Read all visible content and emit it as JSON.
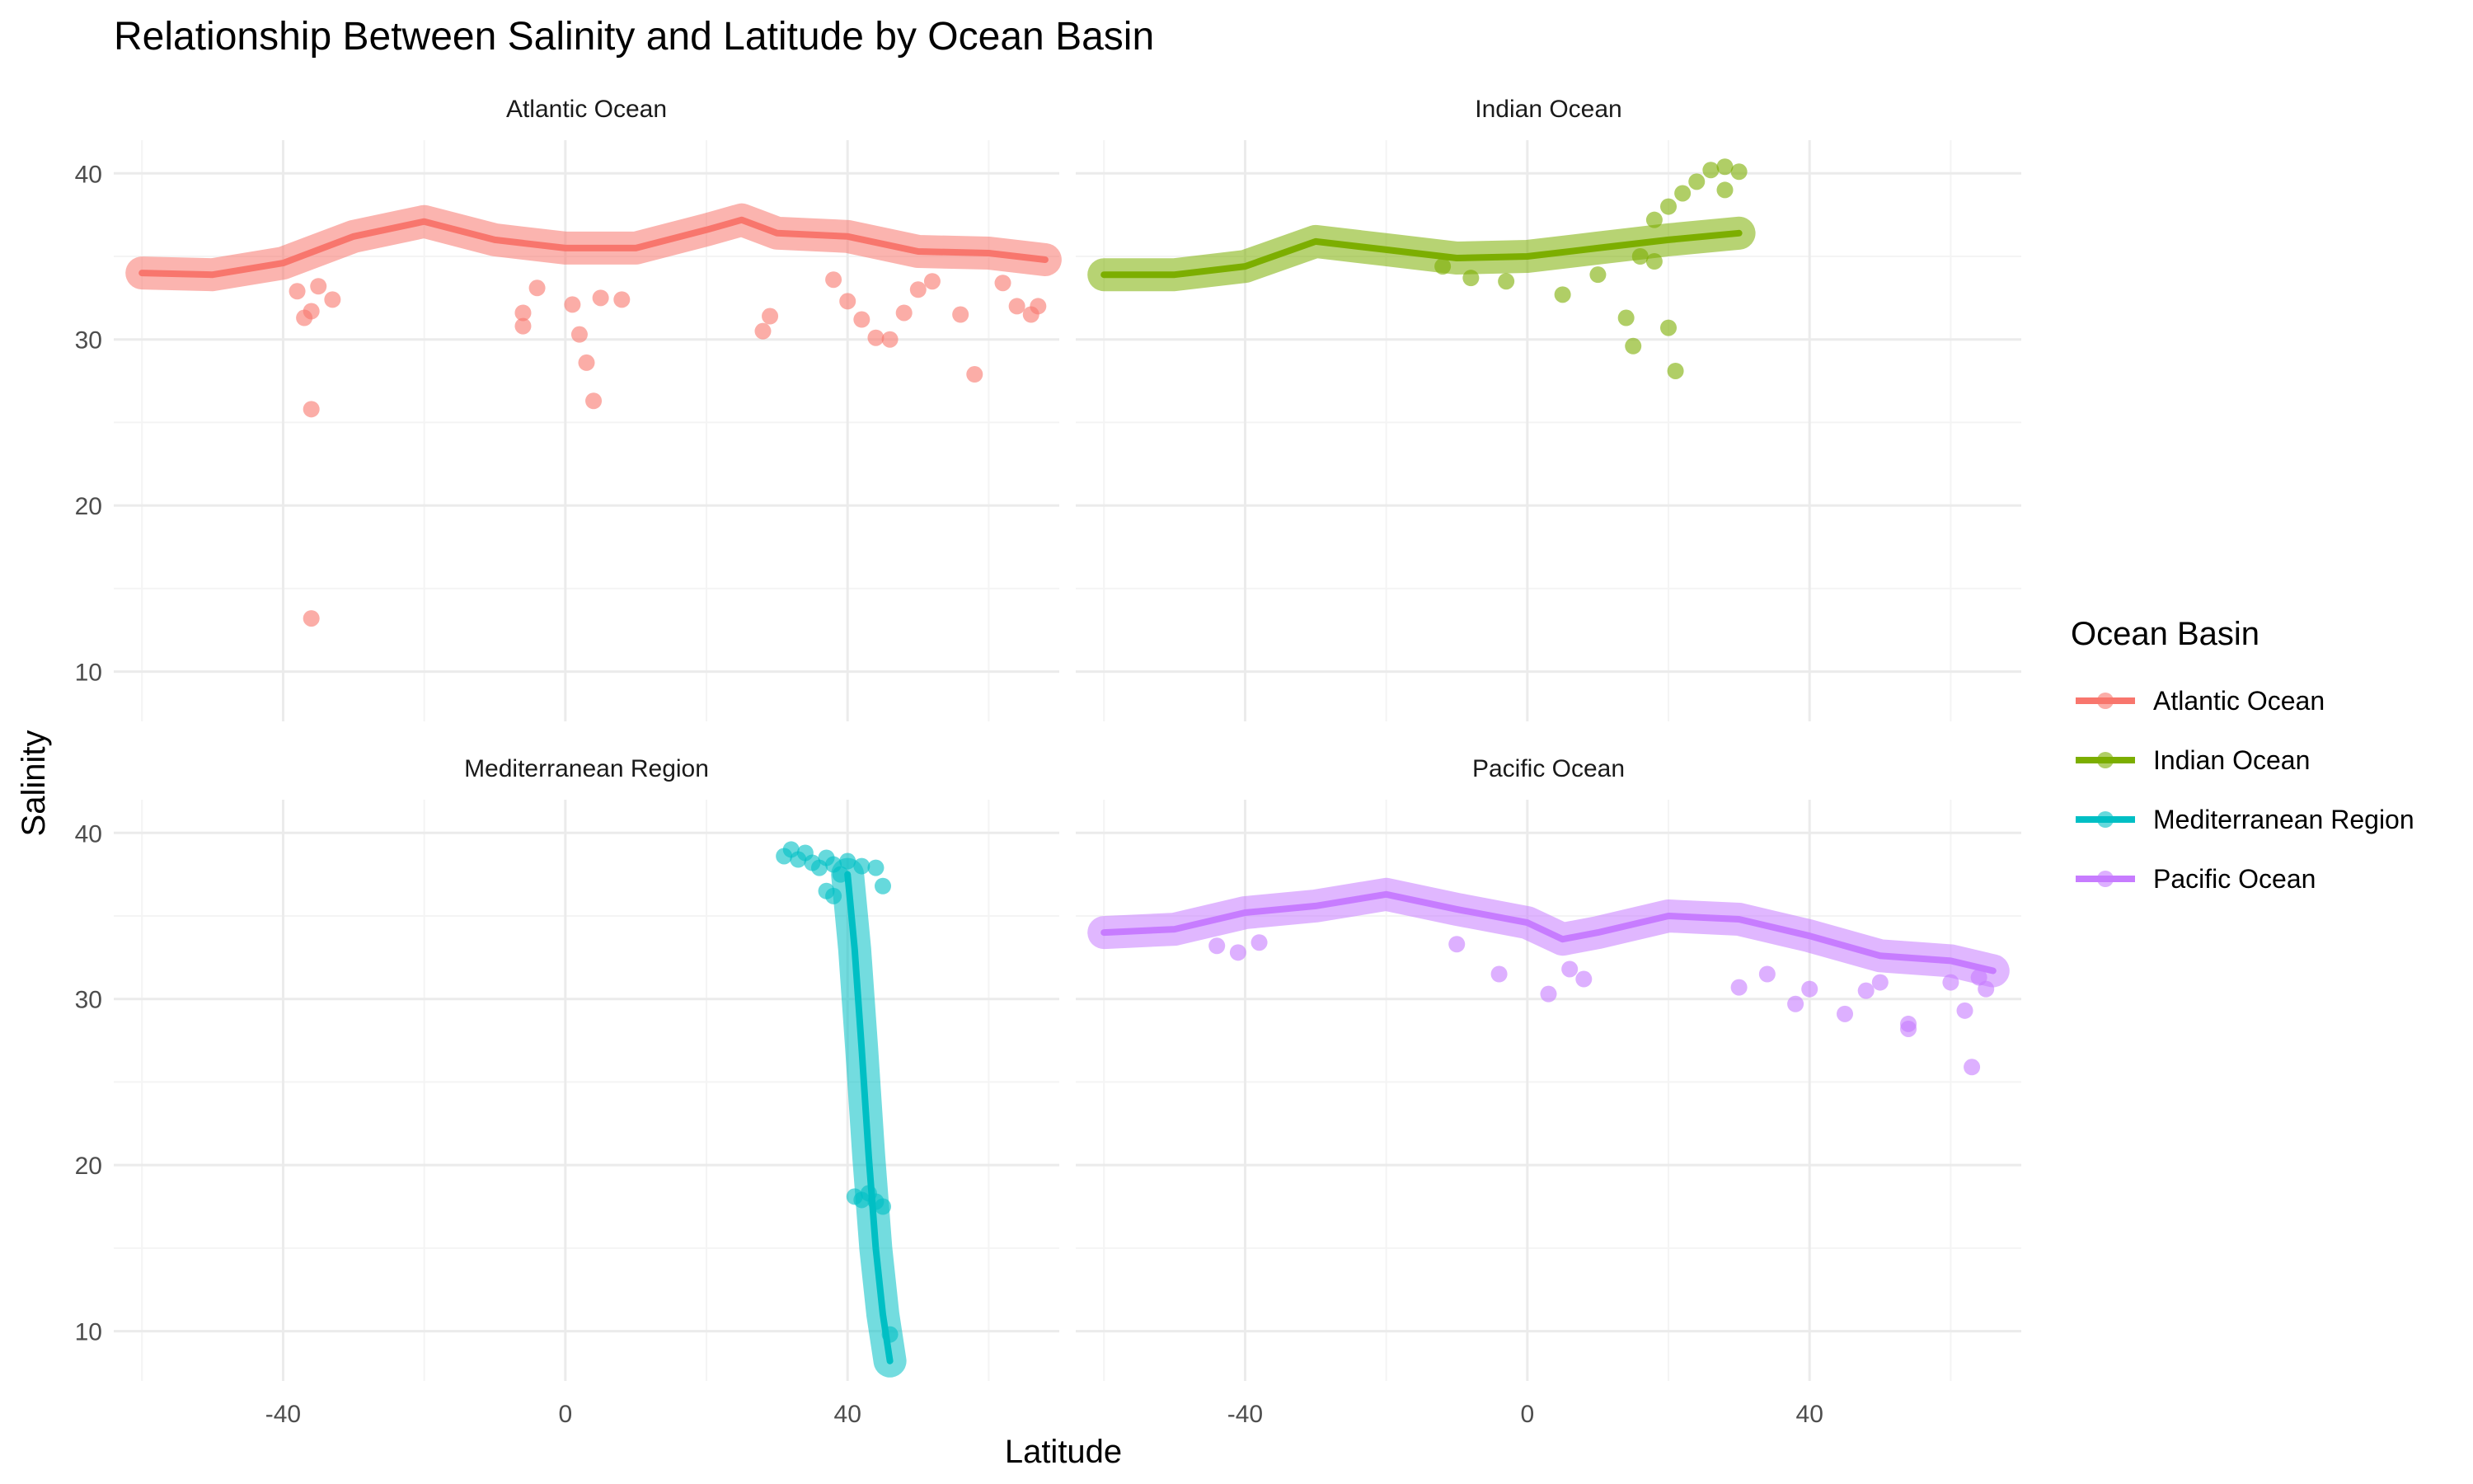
{
  "chart_data": {
    "type": "scatter",
    "title": "Relationship Between Salinity and Latitude by Ocean Basin",
    "xlabel": "Latitude",
    "ylabel": "Salinity",
    "xlim": [
      -64,
      70
    ],
    "ylim": [
      7,
      42
    ],
    "x_ticks": [
      -40,
      0,
      40
    ],
    "y_ticks": [
      10,
      20,
      30,
      40
    ],
    "grid": true,
    "legend": {
      "title": "Ocean Basin",
      "position": "right",
      "entries": [
        "Atlantic Ocean",
        "Indian Ocean",
        "Mediterranean Region",
        "Pacific Ocean"
      ]
    },
    "facets": [
      {
        "name": "Atlantic Ocean",
        "color": "#F8766D",
        "trend": [
          [
            -60,
            34.0
          ],
          [
            -50,
            33.9
          ],
          [
            -40,
            34.6
          ],
          [
            -30,
            36.2
          ],
          [
            -20,
            37.1
          ],
          [
            -10,
            36.0
          ],
          [
            0,
            35.5
          ],
          [
            10,
            35.5
          ],
          [
            20,
            36.6
          ],
          [
            25,
            37.2
          ],
          [
            30,
            36.4
          ],
          [
            40,
            36.2
          ],
          [
            50,
            35.3
          ],
          [
            60,
            35.2
          ],
          [
            68,
            34.8
          ]
        ],
        "points": [
          [
            -36,
            25.8
          ],
          [
            -36,
            13.2
          ],
          [
            -37,
            31.3
          ],
          [
            -36,
            31.7
          ],
          [
            -38,
            32.9
          ],
          [
            -35,
            33.2
          ],
          [
            -33,
            32.4
          ],
          [
            -6,
            30.8
          ],
          [
            -6,
            31.6
          ],
          [
            -4,
            33.1
          ],
          [
            1,
            32.1
          ],
          [
            2,
            30.3
          ],
          [
            3,
            28.6
          ],
          [
            4,
            26.3
          ],
          [
            5,
            32.5
          ],
          [
            8,
            32.4
          ],
          [
            28,
            30.5
          ],
          [
            29,
            31.4
          ],
          [
            38,
            33.6
          ],
          [
            40,
            32.3
          ],
          [
            42,
            31.2
          ],
          [
            44,
            30.1
          ],
          [
            46,
            30.0
          ],
          [
            48,
            31.6
          ],
          [
            50,
            33.0
          ],
          [
            52,
            33.5
          ],
          [
            56,
            31.5
          ],
          [
            58,
            27.9
          ],
          [
            62,
            33.4
          ],
          [
            64,
            32.0
          ],
          [
            66,
            31.5
          ],
          [
            67,
            32.0
          ]
        ]
      },
      {
        "name": "Indian Ocean",
        "color": "#7CAE00",
        "trend": [
          [
            -60,
            33.9
          ],
          [
            -50,
            33.9
          ],
          [
            -40,
            34.4
          ],
          [
            -30,
            35.9
          ],
          [
            -20,
            35.4
          ],
          [
            -10,
            34.9
          ],
          [
            0,
            35.0
          ],
          [
            10,
            35.5
          ],
          [
            20,
            36.0
          ],
          [
            30,
            36.4
          ]
        ],
        "points": [
          [
            5,
            32.7
          ],
          [
            10,
            33.9
          ],
          [
            14,
            31.3
          ],
          [
            15,
            29.6
          ],
          [
            18,
            34.7
          ],
          [
            20,
            30.7
          ],
          [
            21,
            28.1
          ],
          [
            16,
            35.0
          ],
          [
            18,
            37.2
          ],
          [
            20,
            38.0
          ],
          [
            22,
            38.8
          ],
          [
            24,
            39.5
          ],
          [
            26,
            40.2
          ],
          [
            28,
            40.4
          ],
          [
            30,
            40.1
          ],
          [
            28,
            39.0
          ],
          [
            -3,
            33.5
          ],
          [
            -8,
            33.7
          ],
          [
            -12,
            34.4
          ]
        ]
      },
      {
        "name": "Mediterranean Region",
        "color": "#00BFC4",
        "trend": [
          [
            40,
            37.5
          ],
          [
            41,
            33.0
          ],
          [
            42,
            27.0
          ],
          [
            43,
            20.5
          ],
          [
            44,
            15.0
          ],
          [
            45,
            11.0
          ],
          [
            46,
            8.2
          ]
        ],
        "points": [
          [
            31,
            38.6
          ],
          [
            32,
            39.0
          ],
          [
            33,
            38.4
          ],
          [
            34,
            38.8
          ],
          [
            35,
            38.2
          ],
          [
            36,
            37.9
          ],
          [
            37,
            38.5
          ],
          [
            38,
            38.1
          ],
          [
            39,
            37.5
          ],
          [
            37,
            36.5
          ],
          [
            38,
            36.2
          ],
          [
            40,
            38.3
          ],
          [
            42,
            38.0
          ],
          [
            44,
            37.9
          ],
          [
            45,
            36.8
          ],
          [
            41,
            18.1
          ],
          [
            42,
            17.9
          ],
          [
            43,
            18.3
          ],
          [
            44,
            17.8
          ],
          [
            45,
            17.5
          ],
          [
            46,
            9.8
          ]
        ]
      },
      {
        "name": "Pacific Ocean",
        "color": "#C77CFF",
        "trend": [
          [
            -60,
            34.0
          ],
          [
            -50,
            34.2
          ],
          [
            -40,
            35.2
          ],
          [
            -30,
            35.6
          ],
          [
            -20,
            36.3
          ],
          [
            -10,
            35.4
          ],
          [
            0,
            34.6
          ],
          [
            5,
            33.6
          ],
          [
            10,
            34.0
          ],
          [
            20,
            35.0
          ],
          [
            30,
            34.8
          ],
          [
            40,
            33.8
          ],
          [
            50,
            32.6
          ],
          [
            60,
            32.3
          ],
          [
            66,
            31.7
          ]
        ],
        "points": [
          [
            -44,
            33.2
          ],
          [
            -41,
            32.8
          ],
          [
            -38,
            33.4
          ],
          [
            -10,
            33.3
          ],
          [
            -4,
            31.5
          ],
          [
            3,
            30.3
          ],
          [
            6,
            31.8
          ],
          [
            8,
            31.2
          ],
          [
            30,
            30.7
          ],
          [
            34,
            31.5
          ],
          [
            38,
            29.7
          ],
          [
            40,
            30.6
          ],
          [
            45,
            29.1
          ],
          [
            48,
            30.5
          ],
          [
            50,
            31.0
          ],
          [
            54,
            28.5
          ],
          [
            54,
            28.2
          ],
          [
            60,
            31.0
          ],
          [
            62,
            29.3
          ],
          [
            63,
            25.9
          ],
          [
            64,
            31.3
          ],
          [
            65,
            30.6
          ]
        ]
      }
    ]
  }
}
